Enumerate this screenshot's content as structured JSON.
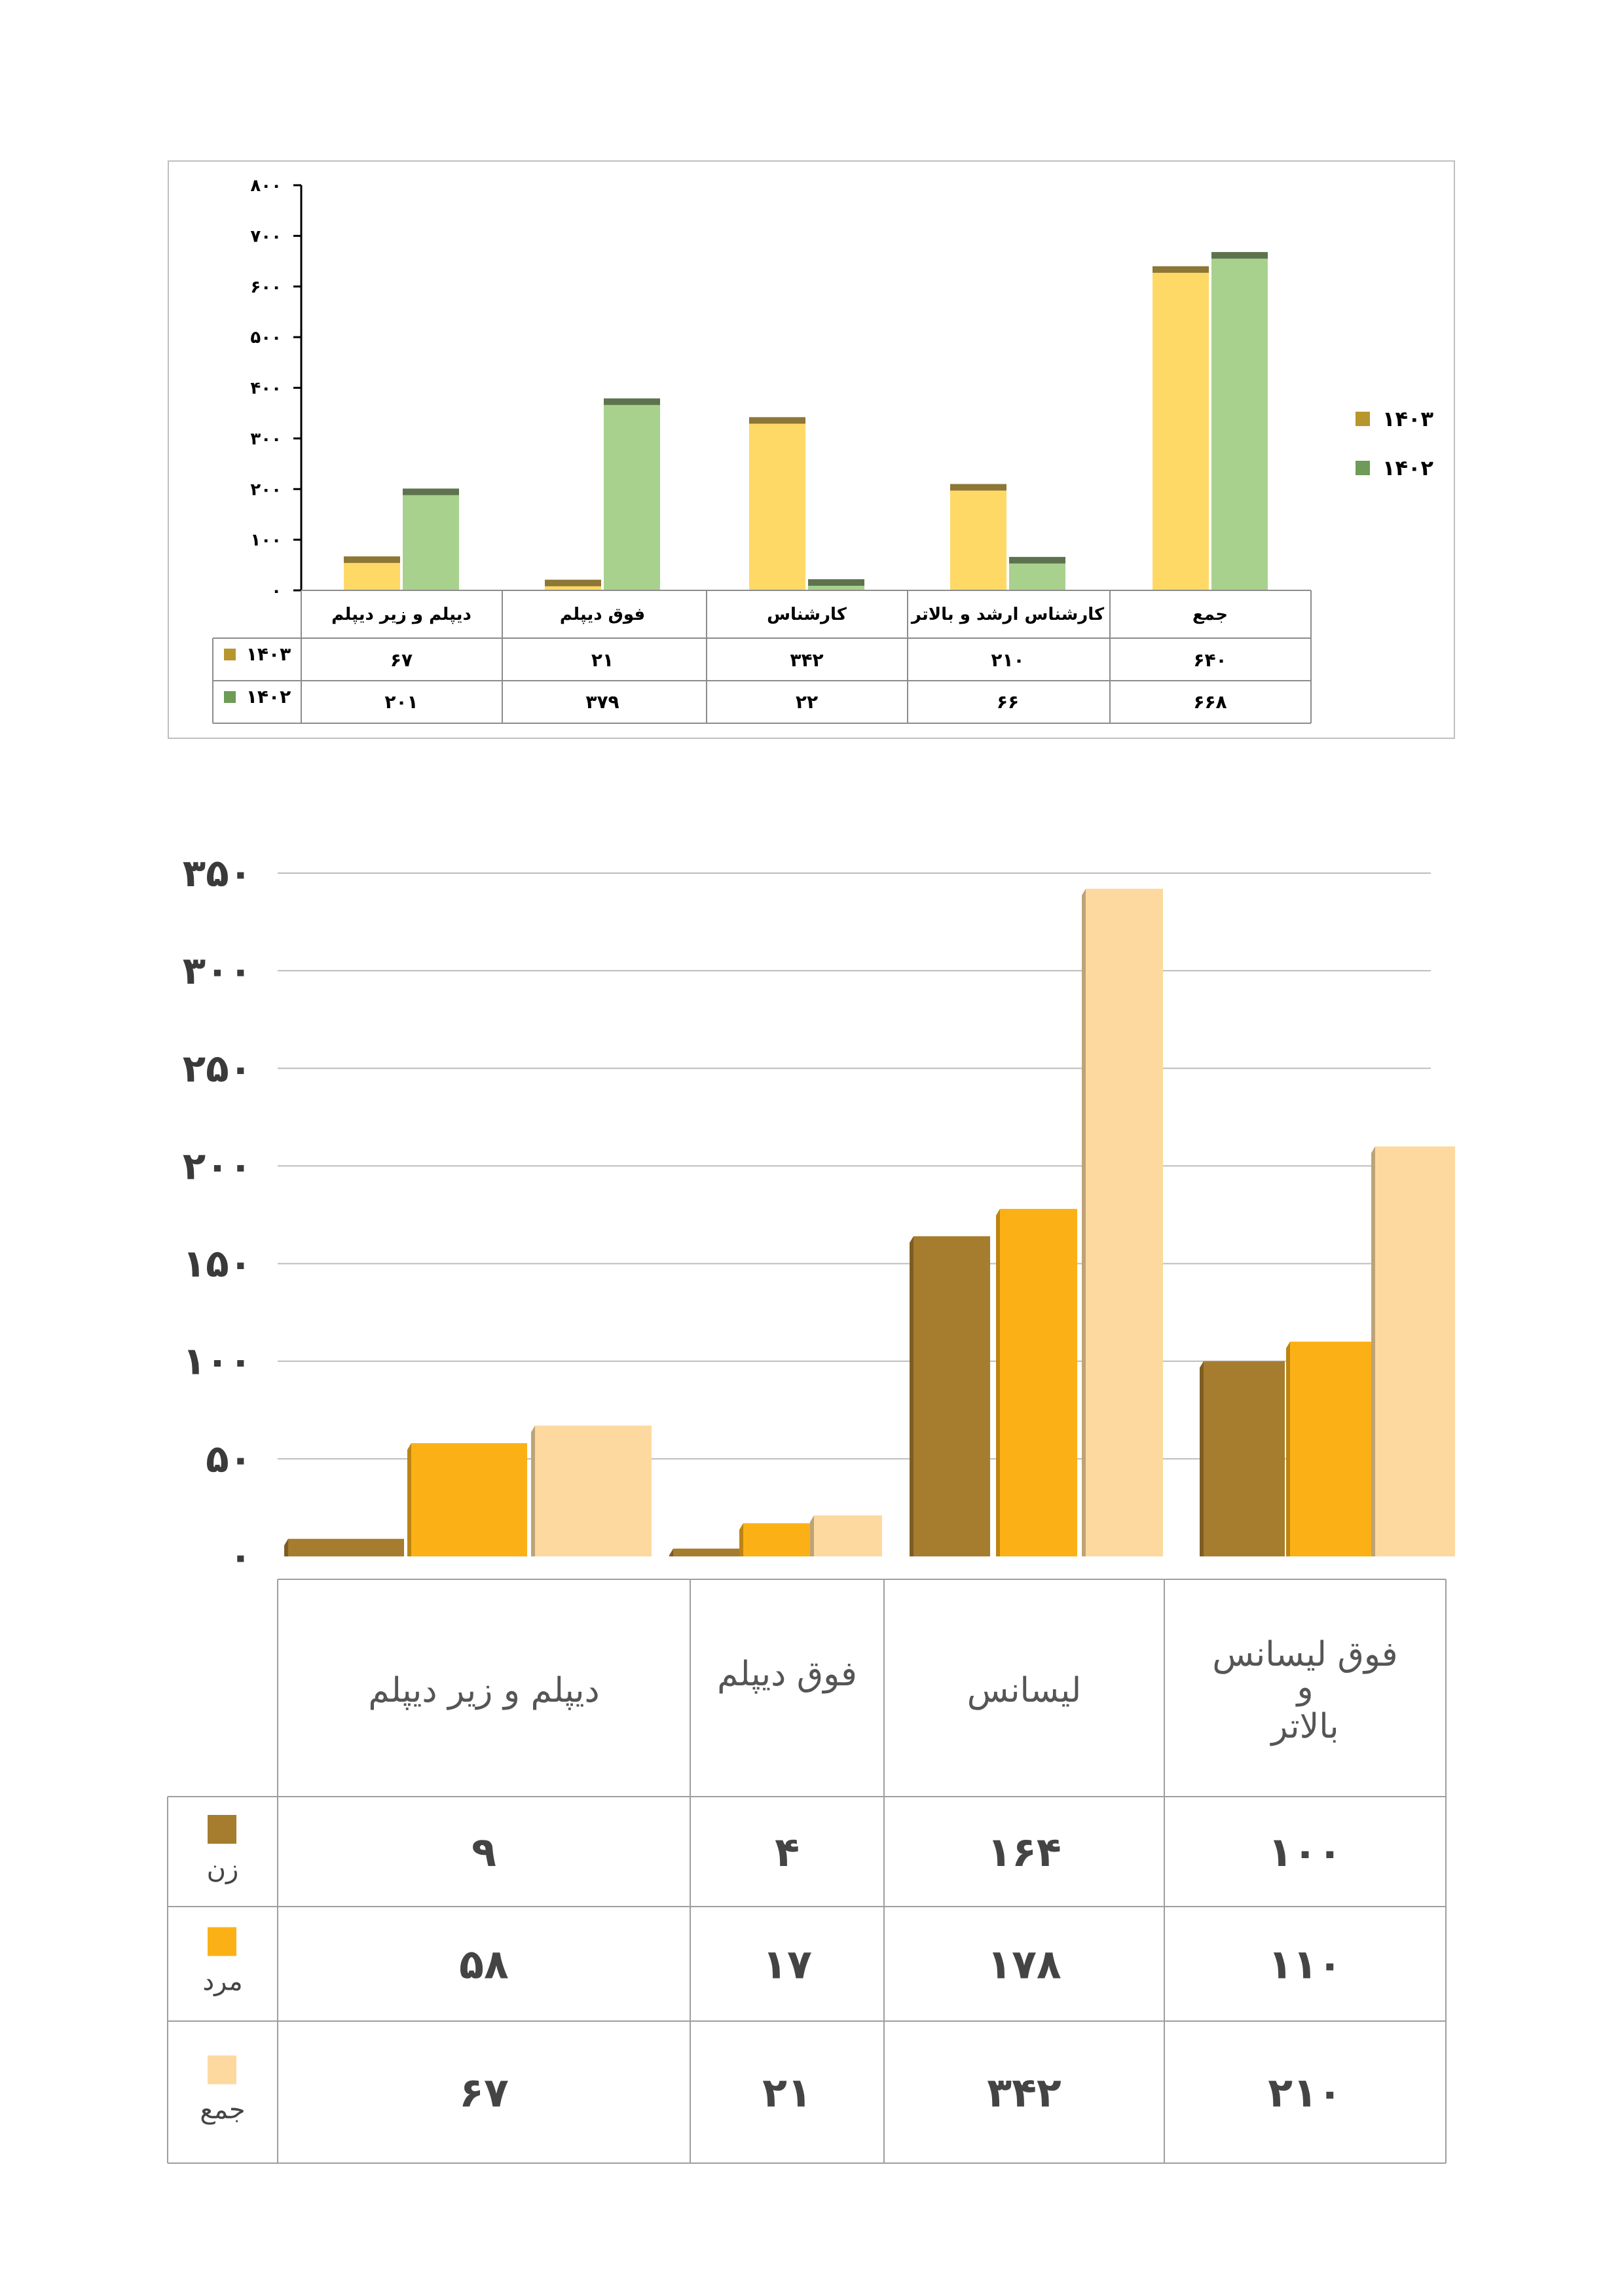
{
  "chart_data": [
    {
      "type": "bar",
      "categories": [
        "دیپلم و زیر دیپلم",
        "فوق دیپلم",
        "کارشناس",
        "کارشناس ارشد و بالاتر",
        "جمع"
      ],
      "category_order_ltr": [
        "دیپلم و زیر دیپلم",
        "فوق دیپلم",
        "کارشناس",
        "کارشناس ارشد و بالاتر",
        "جمع"
      ],
      "series": [
        {
          "name": "۱۴۰۳",
          "values": [
            67,
            21,
            342,
            210,
            640
          ],
          "labels": [
            "۶۷",
            "۲۱",
            "۳۴۲",
            "۲۱۰",
            "۶۴۰"
          ],
          "color": "#FFD966",
          "legend_color": "#B8962E"
        },
        {
          "name": "۱۴۰۲",
          "values": [
            201,
            379,
            22,
            66,
            668
          ],
          "labels": [
            "۲۰۱",
            "۳۷۹",
            "۲۲",
            "۶۶",
            "۶۶۸"
          ],
          "color": "#A9D18E",
          "legend_color": "#6E9B57"
        }
      ],
      "ylim": [
        0,
        800
      ],
      "yticks": [
        0,
        100,
        200,
        300,
        400,
        500,
        600,
        700,
        800
      ],
      "ytick_labels": [
        "۰",
        "۱۰۰",
        "۲۰۰",
        "۳۰۰",
        "۴۰۰",
        "۵۰۰",
        "۶۰۰",
        "۷۰۰",
        "۸۰۰"
      ],
      "legend_position": "right",
      "data_table": true,
      "grid": false
    },
    {
      "type": "bar",
      "categories": [
        "دیپلم و زیر دیپلم",
        "فوق دیپلم",
        "لیسانس",
        "فوق لیسانس و بالاتر"
      ],
      "category_labels_display": [
        "دیپلم و زیر دیپلم",
        "فوق دیپلم",
        "لیسانس",
        "فوق لیسانس\nو\nبالاتر"
      ],
      "series": [
        {
          "name": "زن",
          "values": [
            9,
            4,
            164,
            100
          ],
          "labels": [
            "۹",
            "۴",
            "۱۶۴",
            "۱۰۰"
          ],
          "color": "#A67C2E"
        },
        {
          "name": "مرد",
          "values": [
            58,
            17,
            178,
            110
          ],
          "labels": [
            "۵۸",
            "۱۷",
            "۱۷۸",
            "۱۱۰"
          ],
          "color": "#FBB116"
        },
        {
          "name": "جمع",
          "values": [
            67,
            21,
            342,
            210
          ],
          "labels": [
            "۶۷",
            "۲۱",
            "۳۴۲",
            "۲۱۰"
          ],
          "color": "#FDD9A0"
        }
      ],
      "ylim": [
        0,
        350
      ],
      "yticks": [
        0,
        50,
        100,
        150,
        200,
        250,
        300,
        350
      ],
      "ytick_labels": [
        "۰",
        "۵۰",
        "۱۰۰",
        "۱۵۰",
        "۲۰۰",
        "۲۵۰",
        "۳۰۰",
        "۳۵۰"
      ],
      "grid": true,
      "data_table": true
    }
  ]
}
